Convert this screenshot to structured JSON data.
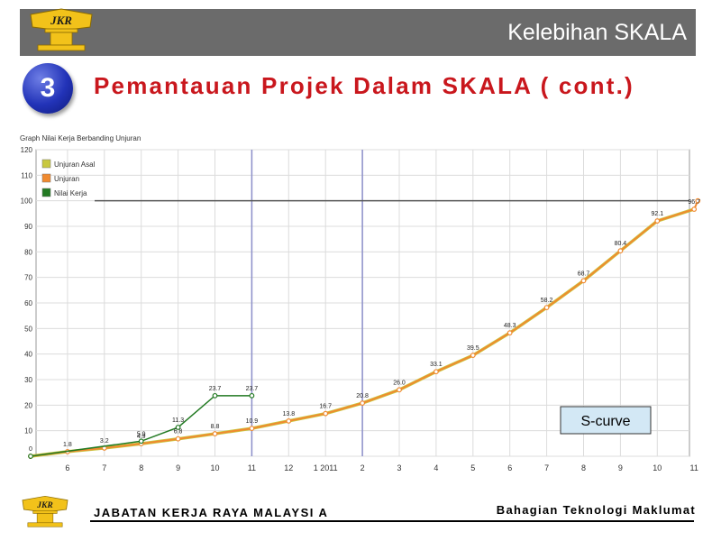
{
  "header": {
    "title": "Kelebihan SKALA",
    "logo_text": "JKR",
    "bar_color": "#6b6b6b"
  },
  "slide": {
    "number": "3",
    "subtitle": "Pemantauan Projek Dalam SKALA ( cont.)",
    "subtitle_color": "#c9171d"
  },
  "footer": {
    "logo_text": "JKR",
    "left_text": "JABATAN KERJA RAYA MALAYSI A",
    "right_text": "Bahagian Teknologi Maklumat"
  },
  "chart_data": {
    "type": "line",
    "title": "Graph Nilai Kerja Berbanding Unjuran",
    "ylim": [
      0,
      120
    ],
    "yticks": [
      0,
      10,
      20,
      30,
      40,
      50,
      60,
      70,
      80,
      90,
      100,
      110,
      120
    ],
    "x_tick_labels": [
      "6",
      "7",
      "8",
      "9",
      "10",
      "11",
      "12",
      "1 2011",
      "2",
      "3",
      "4",
      "5",
      "6",
      "7",
      "8",
      "9",
      "10",
      "11"
    ],
    "grid": true,
    "legend_position": "top-left",
    "reference_line": 100,
    "series": [
      {
        "name": "Unjuran Asal",
        "color": "#c8c840",
        "x": [
          0,
          1,
          2,
          3,
          4,
          5,
          6,
          7,
          8,
          9,
          10,
          11,
          12,
          13,
          14,
          15,
          16,
          17,
          18
        ],
        "values": [
          0,
          1.8,
          3.2,
          4.9,
          6.8,
          8.8,
          10.9,
          13.8,
          16.7,
          20.8,
          26.0,
          33.1,
          39.5,
          48.3,
          58.2,
          68.7,
          80.4,
          92.1,
          96.7
        ]
      },
      {
        "name": "Unjuran",
        "color": "#f08a30",
        "x": [
          0,
          1,
          2,
          3,
          4,
          5,
          6,
          7,
          8,
          9,
          10,
          11,
          12,
          13,
          14,
          15,
          16,
          17,
          18,
          18.1
        ],
        "values": [
          0,
          1.8,
          3.2,
          4.9,
          6.8,
          8.8,
          10.9,
          13.8,
          16.7,
          20.8,
          26.0,
          33.1,
          39.5,
          48.3,
          58.2,
          68.7,
          80.4,
          92.1,
          96.7,
          100
        ],
        "labels": [
          "0",
          "1.8",
          "3.2",
          "4.9",
          "6.8",
          "8.8",
          "10.9",
          "13.8",
          "16.7",
          "20.8",
          "26.0",
          "33.1",
          "39.5",
          "48.3",
          "58.2",
          "68.7",
          "80.4",
          "92.1",
          "96.7",
          ""
        ]
      },
      {
        "name": "Nilai Kerja",
        "color": "#237a23",
        "x": [
          0,
          3,
          4,
          5,
          6
        ],
        "values": [
          0,
          5.9,
          11.3,
          23.7,
          23.7
        ],
        "labels": [
          "",
          "5.9",
          "11.3",
          "23.7",
          "23.7"
        ]
      }
    ],
    "vertical_markers_x": [
      6,
      9
    ],
    "annotation": "S-curve"
  }
}
